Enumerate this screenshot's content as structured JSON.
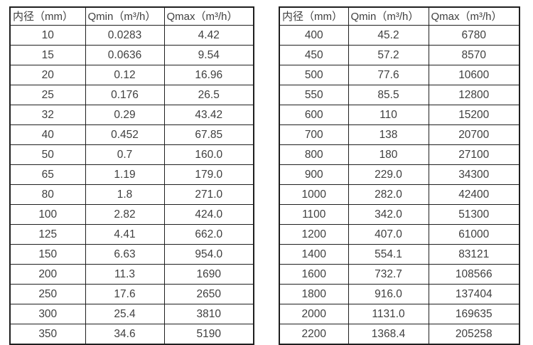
{
  "page": {
    "background_color": "#ffffff",
    "text_color": "#3f3f3f",
    "border_color": "#1f1f1f"
  },
  "chart_data": [
    {
      "type": "table",
      "title": "",
      "columns": [
        "内径（mm）",
        "Qmin（m³/h）",
        "Qmax（m³/h）"
      ],
      "rows": [
        [
          "10",
          "0.0283",
          "4.42"
        ],
        [
          "15",
          "0.0636",
          "9.54"
        ],
        [
          "20",
          "0.12",
          "16.96"
        ],
        [
          "25",
          "0.176",
          "26.5"
        ],
        [
          "32",
          "0.29",
          "43.42"
        ],
        [
          "40",
          "0.452",
          "67.85"
        ],
        [
          "50",
          "0.7",
          "160.0"
        ],
        [
          "65",
          "1.19",
          "179.0"
        ],
        [
          "80",
          "1.8",
          "271.0"
        ],
        [
          "100",
          "2.82",
          "424.0"
        ],
        [
          "125",
          "4.41",
          "662.0"
        ],
        [
          "150",
          "6.63",
          "954.0"
        ],
        [
          "200",
          "11.3",
          "1690"
        ],
        [
          "250",
          "17.6",
          "2650"
        ],
        [
          "300",
          "25.4",
          "3810"
        ],
        [
          "350",
          "34.6",
          "5190"
        ]
      ]
    },
    {
      "type": "table",
      "title": "",
      "columns": [
        "内径（mm）",
        "Qmin（m³/h）",
        "Qmax（m³/h）"
      ],
      "rows": [
        [
          "400",
          "45.2",
          "6780"
        ],
        [
          "450",
          "57.2",
          "8570"
        ],
        [
          "500",
          "77.6",
          "10600"
        ],
        [
          "550",
          "85.5",
          "12800"
        ],
        [
          "600",
          "110",
          "15200"
        ],
        [
          "700",
          "138",
          "20700"
        ],
        [
          "800",
          "180",
          "27100"
        ],
        [
          "900",
          "229.0",
          "34300"
        ],
        [
          "1000",
          "282.0",
          "42400"
        ],
        [
          "1100",
          "342.0",
          "51300"
        ],
        [
          "1200",
          "407.0",
          "61000"
        ],
        [
          "1400",
          "554.1",
          "83121"
        ],
        [
          "1600",
          "732.7",
          "108566"
        ],
        [
          "1800",
          "916.0",
          "137404"
        ],
        [
          "2000",
          "1131.0",
          "169635"
        ],
        [
          "2200",
          "1368.4",
          "205258"
        ]
      ]
    }
  ]
}
